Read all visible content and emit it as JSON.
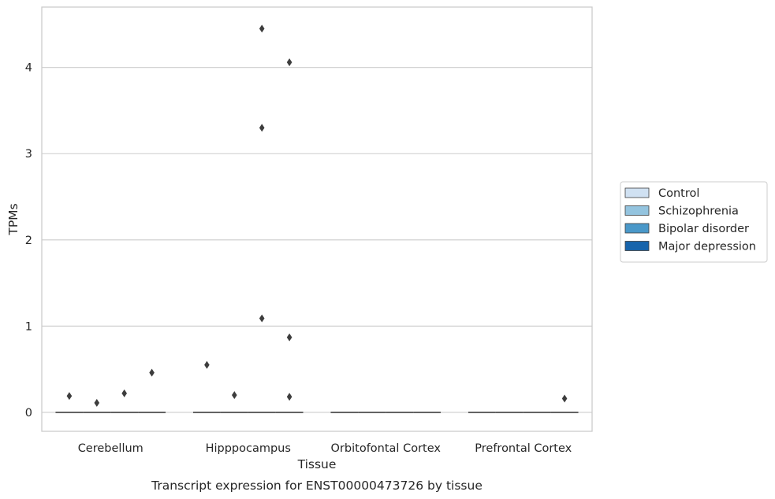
{
  "chart_data": {
    "type": "boxplot",
    "title": "",
    "caption": "Transcript expression for ENST00000473726 by tissue",
    "xlabel": "Tissue",
    "ylabel": "TPMs",
    "ylim": [
      -0.22,
      4.7
    ],
    "yticks": [
      0,
      1,
      2,
      3,
      4
    ],
    "grid": "horizontal",
    "legend_position": "right",
    "categories": [
      "Cerebellum",
      "Hipppocampus",
      "Orbitofontal Cortex",
      "Prefrontal Cortex"
    ],
    "series": [
      {
        "name": "Control",
        "color": "#d0e1f2",
        "median": [
          0,
          0,
          0,
          0
        ],
        "outliers": [
          [
            0.19
          ],
          [
            0.55
          ],
          [],
          []
        ]
      },
      {
        "name": "Schizophrenia",
        "color": "#94c4df",
        "median": [
          0,
          0,
          0,
          0
        ],
        "outliers": [
          [
            0.11
          ],
          [
            0.2
          ],
          [],
          []
        ]
      },
      {
        "name": "Bipolar disorder",
        "color": "#4a98c9",
        "median": [
          0,
          0,
          0,
          0
        ],
        "outliers": [
          [
            0.22
          ],
          [
            1.09,
            3.3,
            4.45
          ],
          [],
          []
        ]
      },
      {
        "name": "Major depression",
        "color": "#1764ab",
        "median": [
          0,
          0,
          0,
          0
        ],
        "outliers": [
          [
            0.46
          ],
          [
            0.18,
            0.87,
            4.06
          ],
          [],
          [
            0.16
          ]
        ]
      }
    ]
  }
}
